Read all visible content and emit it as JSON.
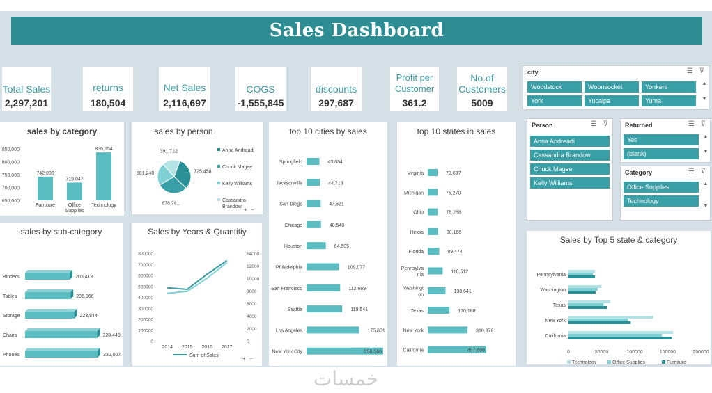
{
  "header": {
    "title": "Sales Dashboard"
  },
  "kpis": [
    {
      "label": "Total Sales",
      "value": "2,297,201"
    },
    {
      "label": "returns",
      "value": "180,504"
    },
    {
      "label": "Net Sales",
      "value": "2,116,697"
    },
    {
      "label": "COGS",
      "value": "-1,555,845"
    },
    {
      "label": "discounts",
      "value": "297,687"
    },
    {
      "label": "Profit per Customer",
      "value": "361.2"
    },
    {
      "label": "No.of Customers",
      "value": "5009"
    }
  ],
  "slicers": {
    "city": {
      "title": "city",
      "items": [
        "Woodstock",
        "Woonsocket",
        "Yonkers",
        "York",
        "Yucaipa",
        "Yuma"
      ]
    },
    "person": {
      "title": "Person",
      "items": [
        "Anna Andreadi",
        "Cassandra Brandow",
        "Chuck Magee",
        "Kelly Williams"
      ]
    },
    "returned": {
      "title": "Returned",
      "items": [
        "Yes",
        "(blank)"
      ]
    },
    "category": {
      "title": "Category",
      "items": [
        "Office Supplies",
        "Technology"
      ]
    },
    "icons": {
      "multiselect": "multi-select-icon",
      "clear": "clear-filter-icon"
    }
  },
  "colors": {
    "accent": "#2d8d93",
    "bar": "#5bbcc2",
    "barDark": "#3a9aa2",
    "bg": "#d5dfe6",
    "furniture": "#2b8f96",
    "office": "#7fd0d4",
    "technology": "#b5e2e4"
  },
  "chart_data": [
    {
      "id": "category",
      "type": "bar",
      "title": "sales by category",
      "categories": [
        "Furniture",
        "Office Supplies",
        "Technology"
      ],
      "values": [
        742000,
        719047,
        836154
      ],
      "labels": [
        "742,000",
        "719,047",
        "836,154"
      ],
      "ylim": [
        650000,
        850000
      ],
      "yticks": [
        "650,000",
        "700,000",
        "750,000",
        "800,000",
        "850,000"
      ]
    },
    {
      "id": "person",
      "type": "pie",
      "title": "sales by person",
      "categories": [
        "Anna Andreadi",
        "Chuck Magee",
        "Kelly Williams",
        "Cassandra Brandow"
      ],
      "values": [
        725458,
        678781,
        501240,
        391722
      ],
      "labels": [
        "725,458",
        "678,781",
        "501,240",
        "391,722"
      ]
    },
    {
      "id": "cities",
      "type": "bar",
      "title": "top 10 cities by sales",
      "categories": [
        "Springfield",
        "Jacksonville",
        "San Diego",
        "Chicago",
        "Houston",
        "Philadelphia",
        "San Francisco",
        "Seattle",
        "Los Angeles",
        "New York City"
      ],
      "values": [
        43054,
        44713,
        47521,
        48540,
        64505,
        109077,
        112669,
        119541,
        175851,
        256368
      ],
      "labels": [
        "43,054",
        "44,713",
        "47,521",
        "48,540",
        "64,505",
        "109,077",
        "112,669",
        "119,541",
        "175,851",
        "256,368"
      ]
    },
    {
      "id": "states",
      "type": "bar",
      "title": "top 10 states in sales",
      "categories": [
        "Virginia",
        "Michigan",
        "Ohio",
        "Illinois",
        "Florida",
        "Pennsylvania",
        "Washington",
        "Texas",
        "New York",
        "California"
      ],
      "catLines": [
        [
          "Virginia"
        ],
        [
          "Michigan"
        ],
        [
          "Ohio"
        ],
        [
          "Illinois"
        ],
        [
          "Florida"
        ],
        [
          "Pennsylva",
          "nia"
        ],
        [
          "Washingt",
          "on"
        ],
        [
          "Texas"
        ],
        [
          "New York"
        ],
        [
          "California"
        ]
      ],
      "values": [
        70637,
        76270,
        78258,
        80166,
        89474,
        116512,
        138641,
        170188,
        310876,
        457688
      ],
      "labels": [
        "70,637",
        "76,270",
        "78,258",
        "80,166",
        "89,474",
        "116,512",
        "138,641",
        "170,188",
        "310,876",
        "457,688"
      ]
    },
    {
      "id": "subcategory",
      "type": "bar",
      "title": "sales by sub-category",
      "categories": [
        "Binders",
        "Tables",
        "Storage",
        "Chairs",
        "Phones"
      ],
      "values": [
        203413,
        206966,
        223844,
        328449,
        330007
      ],
      "labels": [
        "203,413",
        "206,966",
        "223,844",
        "328,449",
        "330,007"
      ]
    },
    {
      "id": "years",
      "type": "line",
      "title": "Sales by Years & Quantitiy",
      "x": [
        "2014",
        "2015",
        "2016",
        "2017"
      ],
      "series": [
        {
          "name": "Sum of Sales",
          "values": [
            484000,
            470000,
            608000,
            733000
          ]
        },
        {
          "name": "",
          "values": [
            7600,
            7900,
            10000,
            12500
          ]
        }
      ],
      "ylim": [
        0,
        800000
      ],
      "y2lim": [
        0,
        14000
      ],
      "yticks": [
        "0",
        "100000",
        "200000",
        "300000",
        "400000",
        "500000",
        "600000",
        "700000",
        "800000"
      ],
      "y2ticks": [
        "0",
        "2000",
        "4000",
        "6000",
        "8000",
        "10000",
        "12000",
        "14000"
      ]
    },
    {
      "id": "top5",
      "type": "bar",
      "title": "Sales by Top 5 state & category",
      "categories": [
        "Pennsylvania",
        "Washington",
        "Texas",
        "New York",
        "California"
      ],
      "series": [
        {
          "name": "Technology",
          "values": [
            40000,
            50000,
            63000,
            128000,
            158000
          ]
        },
        {
          "name": "Office Supplies",
          "values": [
            37000,
            44000,
            53000,
            90000,
            141000
          ]
        },
        {
          "name": "Furniture",
          "values": [
            40000,
            41000,
            58000,
            94000,
            156000
          ]
        }
      ],
      "xlim": [
        0,
        200000
      ],
      "xticks": [
        "0",
        "50000",
        "100000",
        "150000",
        "200000"
      ]
    }
  ],
  "chart_controls": {
    "expand": "+",
    "collapse": "−"
  },
  "watermark": "خمسات"
}
